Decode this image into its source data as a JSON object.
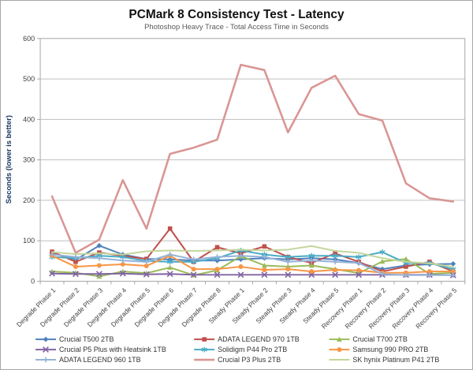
{
  "chart_data": {
    "type": "line",
    "title": "PCMark 8 Consistency Test - Latency",
    "subtitle": "Photoshop Heavy Trace - Total Access Time in Seconds",
    "ylabel": "Seconds (lower is better)",
    "ylim": [
      0,
      600
    ],
    "ytick_step": 100,
    "grid": "horizontal",
    "legend_position": "bottom",
    "colors": {
      "gridline": "#bfbfbf",
      "plot_border": "#a6a6a6",
      "axis_text": "#404040",
      "subtitle_text": "#595959",
      "yaxis_title_text": "#17365d"
    },
    "categories": [
      "Degrade Phase 1",
      "Degrade Phase 2",
      "Degrade Phase 3",
      "Degrade Phase 4",
      "Degrade Phase 5",
      "Degrade Phase 6",
      "Degrade Phase 7",
      "Degrade Phase 8",
      "Steady Phase 1",
      "Steady Phase 2",
      "Steady Phase 3",
      "Steady Phase 4",
      "Steady Phase 5",
      "Recovery Phase 1",
      "Recovery Phase 2",
      "Recovery Phase 3",
      "Recovery Phase 4",
      "Recovery Phase 5"
    ],
    "series": [
      {
        "name": "Crucial T500 2TB",
        "color": "#4F81BD",
        "marker": "diamond",
        "line_width": 2,
        "values": [
          70,
          53,
          88,
          66,
          55,
          54,
          51,
          51,
          54,
          57,
          54,
          57,
          54,
          45,
          30,
          39,
          42,
          43
        ]
      },
      {
        "name": "ADATA LEGEND 970 1TB",
        "color": "#C0504D",
        "marker": "square",
        "line_width": 2,
        "values": [
          73,
          48,
          71,
          63,
          55,
          130,
          48,
          84,
          69,
          86,
          60,
          45,
          69,
          48,
          24,
          36,
          48,
          24
        ]
      },
      {
        "name": "Crucial T700 2TB",
        "color": "#9BBB59",
        "marker": "triangle",
        "line_width": 2,
        "values": [
          24,
          21,
          12,
          24,
          20,
          34,
          15,
          27,
          62,
          39,
          36,
          39,
          30,
          20,
          49,
          55,
          18,
          21
        ]
      },
      {
        "name": "Crucial P5 Plus with Heatsink 1TB",
        "color": "#8064A2",
        "marker": "x",
        "line_width": 2,
        "values": [
          19,
          18,
          18,
          19,
          17,
          18,
          16,
          16,
          16,
          16,
          16,
          16,
          16,
          16,
          16,
          16,
          16,
          15
        ]
      },
      {
        "name": "Solidigm P44 Pro 2TB",
        "color": "#4BACC6",
        "marker": "asterisk",
        "line_width": 2,
        "values": [
          60,
          57,
          63,
          60,
          50,
          48,
          48,
          57,
          76,
          66,
          60,
          63,
          63,
          60,
          72,
          45,
          45,
          30
        ]
      },
      {
        "name": "Samsung 990 PRO 2TB",
        "color": "#F79646",
        "marker": "circle",
        "line_width": 2,
        "values": [
          63,
          36,
          39,
          42,
          38,
          63,
          30,
          30,
          36,
          28,
          30,
          24,
          28,
          27,
          21,
          21,
          24,
          24
        ]
      },
      {
        "name": "ADATA LEGEND 960 1TB",
        "color": "#95B3D7",
        "marker": "plus",
        "line_width": 2,
        "values": [
          66,
          60,
          57,
          51,
          48,
          66,
          54,
          60,
          63,
          60,
          48,
          51,
          48,
          45,
          18,
          15,
          15,
          15
        ]
      },
      {
        "name": "Crucial P3 Plus 2TB",
        "color": "#D99694",
        "marker": "none",
        "line_width": 2.6,
        "values": [
          210,
          70,
          103,
          250,
          130,
          315,
          330,
          350,
          535,
          522,
          368,
          478,
          508,
          413,
          397,
          242,
          205,
          197
        ]
      },
      {
        "name": "SK hynix Platinum P41 2TB",
        "color": "#C3D69B",
        "marker": "none",
        "line_width": 2,
        "values": [
          72,
          67,
          69,
          66,
          74,
          76,
          75,
          76,
          78,
          76,
          78,
          87,
          75,
          70,
          57,
          48,
          44,
          36
        ]
      }
    ]
  }
}
